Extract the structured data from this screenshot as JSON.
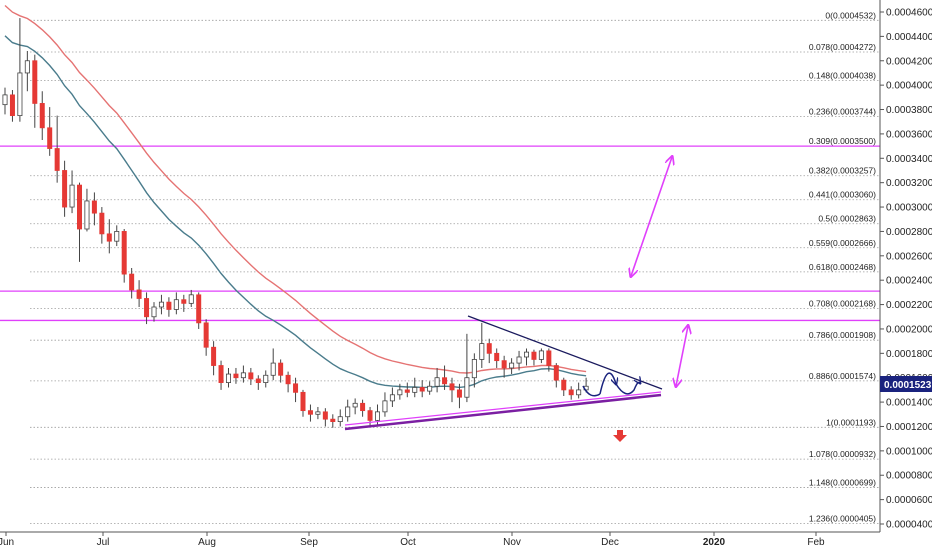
{
  "chart_data": {
    "type": "candlestick",
    "title": "",
    "xlabel": "",
    "ylabel": "",
    "ylim": [
      4e-05,
      0.00047
    ],
    "x_ticks": [
      "Jun",
      "Jul",
      "Aug",
      "Sep",
      "Oct",
      "Nov",
      "Dec",
      "2020",
      "Feb"
    ],
    "y_ticks": [
      "0.0004600",
      "0.0004400",
      "0.0004200",
      "0.0004000",
      "0.0003800",
      "0.0003600",
      "0.0003400",
      "0.0003200",
      "0.0003000",
      "0.0002800",
      "0.0002600",
      "0.0002400",
      "0.0002200",
      "0.0002000",
      "0.0001800",
      "0.0001600",
      "0.0001400",
      "0.0001200",
      "0.0001000",
      "0.0000800",
      "0.0000600",
      "0.0000400"
    ],
    "fib_levels": [
      {
        "label": "0(0.0004532)",
        "value": 0.0004532
      },
      {
        "label": "0.078(0.0004272)",
        "value": 0.0004272
      },
      {
        "label": "0.148(0.0004038)",
        "value": 0.0004038
      },
      {
        "label": "0.236(0.0003744)",
        "value": 0.0003744
      },
      {
        "label": "0.309(0.0003500)",
        "value": 0.00035
      },
      {
        "label": "0.382(0.0003257)",
        "value": 0.0003257
      },
      {
        "label": "0.441(0.0003060)",
        "value": 0.000306
      },
      {
        "label": "0.5(0.0002863)",
        "value": 0.0002863
      },
      {
        "label": "0.559(0.0002666)",
        "value": 0.0002666
      },
      {
        "label": "0.618(0.0002468)",
        "value": 0.0002468
      },
      {
        "label": "0.708(0.0002168)",
        "value": 0.0002168
      },
      {
        "label": "0.786(0.0001908)",
        "value": 0.0001908
      },
      {
        "label": "0.886(0.0001574)",
        "value": 0.0001574
      },
      {
        "label": "1(0.0001193)",
        "value": 0.0001193
      },
      {
        "label": "1.078(0.0000932)",
        "value": 9.32e-05
      },
      {
        "label": "1.148(0.0000699)",
        "value": 6.99e-05
      },
      {
        "label": "1.236(0.0000405)",
        "value": 4.05e-05
      }
    ],
    "horizontal_lines": [
      0.00035,
      0.000231,
      0.000207
    ],
    "current_price": "0.0001523",
    "colors": {
      "up": "#ffffff",
      "down": "#e53935",
      "wick": "#444444",
      "ma_red": "#e57373",
      "ma_teal": "#4a7c8c",
      "magenta": "#e040fb",
      "trend_black": "#1a1a5e",
      "trend_purple": "#7b1fa2",
      "price_badge": "#1a237e"
    },
    "candles": [
      [
        0.000384,
        0.000392,
        0.000398,
        0.000376
      ],
      [
        0.000392,
        0.000375,
        0.000396,
        0.00037
      ],
      [
        0.000375,
        0.00041,
        0.000455,
        0.00037
      ],
      [
        0.00041,
        0.00042,
        0.000428,
        0.000395
      ],
      [
        0.00042,
        0.000385,
        0.000425,
        0.000365
      ],
      [
        0.000385,
        0.000365,
        0.000395,
        0.000355
      ],
      [
        0.000365,
        0.000348,
        0.000382,
        0.000342
      ],
      [
        0.000348,
        0.00033,
        0.000375,
        0.00032
      ],
      [
        0.00033,
        0.0003,
        0.000338,
        0.000292
      ],
      [
        0.0003,
        0.000318,
        0.00033,
        0.000295
      ],
      [
        0.000318,
        0.000282,
        0.00032,
        0.000255
      ],
      [
        0.000282,
        0.000305,
        0.000315,
        0.00028
      ],
      [
        0.000305,
        0.000295,
        0.000312,
        0.000285
      ],
      [
        0.000295,
        0.000278,
        0.0003,
        0.00027
      ],
      [
        0.000278,
        0.000272,
        0.00029,
        0.000262
      ],
      [
        0.000272,
        0.00028,
        0.000285,
        0.000268
      ],
      [
        0.00028,
        0.000245,
        0.000282,
        0.000238
      ],
      [
        0.000245,
        0.000232,
        0.00025,
        0.000225
      ],
      [
        0.000232,
        0.000225,
        0.00024,
        0.000218
      ],
      [
        0.000225,
        0.00021,
        0.00023,
        0.000204
      ],
      [
        0.00021,
        0.000218,
        0.000222,
        0.000206
      ],
      [
        0.000218,
        0.000222,
        0.000228,
        0.000212
      ],
      [
        0.000222,
        0.000216,
        0.000226,
        0.00021
      ],
      [
        0.000216,
        0.000224,
        0.00023,
        0.000212
      ],
      [
        0.000224,
        0.000221,
        0.000228,
        0.000214
      ],
      [
        0.000221,
        0.000228,
        0.000232,
        0.000218
      ],
      [
        0.000228,
        0.000205,
        0.00023,
        0.0002
      ],
      [
        0.000205,
        0.000185,
        0.000208,
        0.000178
      ],
      [
        0.000185,
        0.00017,
        0.00019,
        0.000162
      ],
      [
        0.00017,
        0.000156,
        0.000174,
        0.00015
      ],
      [
        0.000156,
        0.000163,
        0.000168,
        0.000152
      ],
      [
        0.000163,
        0.00016,
        0.000168,
        0.000155
      ],
      [
        0.00016,
        0.000164,
        0.00017,
        0.000156
      ],
      [
        0.000164,
        0.000159,
        0.000168,
        0.000154
      ],
      [
        0.000159,
        0.000156,
        0.000162,
        0.00015
      ],
      [
        0.000156,
        0.000162,
        0.000166,
        0.000152
      ],
      [
        0.000162,
        0.000172,
        0.000184,
        0.000158
      ],
      [
        0.000172,
        0.000162,
        0.000175,
        0.000156
      ],
      [
        0.000162,
        0.000155,
        0.000165,
        0.000148
      ],
      [
        0.000155,
        0.000148,
        0.00016,
        0.00014
      ],
      [
        0.000148,
        0.000133,
        0.00015,
        0.000128
      ],
      [
        0.000133,
        0.00013,
        0.000138,
        0.000124
      ],
      [
        0.00013,
        0.000132,
        0.000136,
        0.000126
      ],
      [
        0.000132,
        0.000126,
        0.000135,
        0.00012
      ],
      [
        0.000126,
        0.000124,
        0.00013,
        0.000119
      ],
      [
        0.000124,
        0.000128,
        0.000134,
        0.00012
      ],
      [
        0.000128,
        0.000136,
        0.000142,
        0.000124
      ],
      [
        0.000136,
        0.000139,
        0.000143,
        0.00013
      ],
      [
        0.000139,
        0.000133,
        0.000142,
        0.000128
      ],
      [
        0.000133,
        0.000125,
        0.000136,
        0.00012
      ],
      [
        0.000125,
        0.000132,
        0.000138,
        0.00012
      ],
      [
        0.000132,
        0.000141,
        0.000148,
        0.000128
      ],
      [
        0.000141,
        0.000146,
        0.000152,
        0.000136
      ],
      [
        0.000146,
        0.00015,
        0.000155,
        0.000142
      ],
      [
        0.00015,
        0.000148,
        0.000156,
        0.000144
      ],
      [
        0.000148,
        0.000152,
        0.00016,
        0.000144
      ],
      [
        0.000152,
        0.000149,
        0.000158,
        0.000144
      ],
      [
        0.000149,
        0.000153,
        0.000157,
        0.000146
      ],
      [
        0.000153,
        0.00016,
        0.000168,
        0.000148
      ],
      [
        0.00016,
        0.000155,
        0.00017,
        0.00015
      ],
      [
        0.000155,
        0.00015,
        0.00016,
        0.00014
      ],
      [
        0.00015,
        0.000144,
        0.000155,
        0.000135
      ],
      [
        0.000144,
        0.00016,
        0.000196,
        0.00014
      ],
      [
        0.00016,
        0.000175,
        0.00018,
        0.000152
      ],
      [
        0.000175,
        0.000188,
        0.000205,
        0.000168
      ],
      [
        0.000188,
        0.00018,
        0.000192,
        0.000172
      ],
      [
        0.00018,
        0.000174,
        0.000184,
        0.000168
      ],
      [
        0.000174,
        0.000168,
        0.000178,
        0.00016
      ],
      [
        0.000168,
        0.000172,
        0.000176,
        0.000163
      ],
      [
        0.000172,
        0.000177,
        0.000182,
        0.000166
      ],
      [
        0.000177,
        0.000181,
        0.000184,
        0.00017
      ],
      [
        0.000181,
        0.000175,
        0.000183,
        0.00017
      ],
      [
        0.000175,
        0.000182,
        0.000184,
        0.000172
      ],
      [
        0.000182,
        0.00017,
        0.000184,
        0.000165
      ],
      [
        0.00017,
        0.000158,
        0.000172,
        0.000152
      ],
      [
        0.000158,
        0.00015,
        0.00016,
        0.000145
      ],
      [
        0.00015,
        0.000146,
        0.000153,
        0.000142
      ],
      [
        0.000146,
        0.00015,
        0.000156,
        0.000143
      ],
      [
        0.00015,
        0.000153,
        0.00016,
        0.000148
      ]
    ]
  }
}
